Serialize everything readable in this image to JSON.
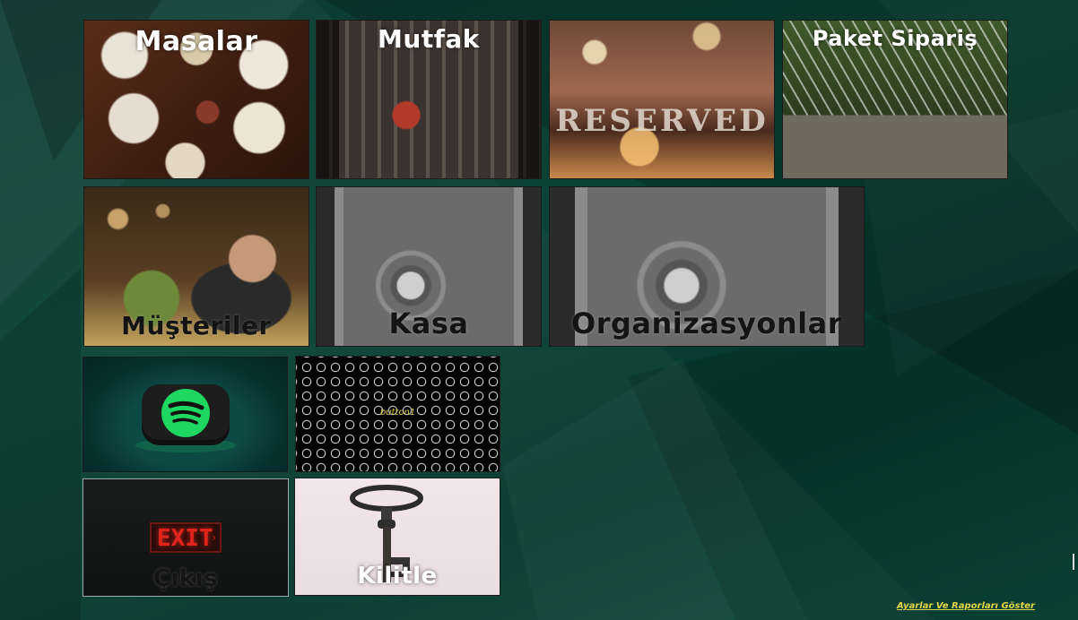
{
  "tiles": {
    "masalar": "Masalar",
    "mutfak": "Mutfak",
    "paket_siparis": "Paket Sipariş",
    "musteriler": "Müşteriler",
    "kasa": "Kasa",
    "organizasyonlar": "Organizasyonlar",
    "button1": "button1",
    "cikis": "Çıkış",
    "kilitle": "Kilitle"
  },
  "reserved_sign": "RESERVED",
  "exit_sign": "EXIT",
  "footer": {
    "settings_link": "Ayarlar Ve Raporları Göster"
  },
  "icons": {
    "spotify": "spotify-icon",
    "key": "key-icon"
  },
  "colors": {
    "background": "#0a4435",
    "footer_link": "#e4d64a",
    "spotify_green": "#1ed760",
    "exit_red": "#e0241c"
  }
}
